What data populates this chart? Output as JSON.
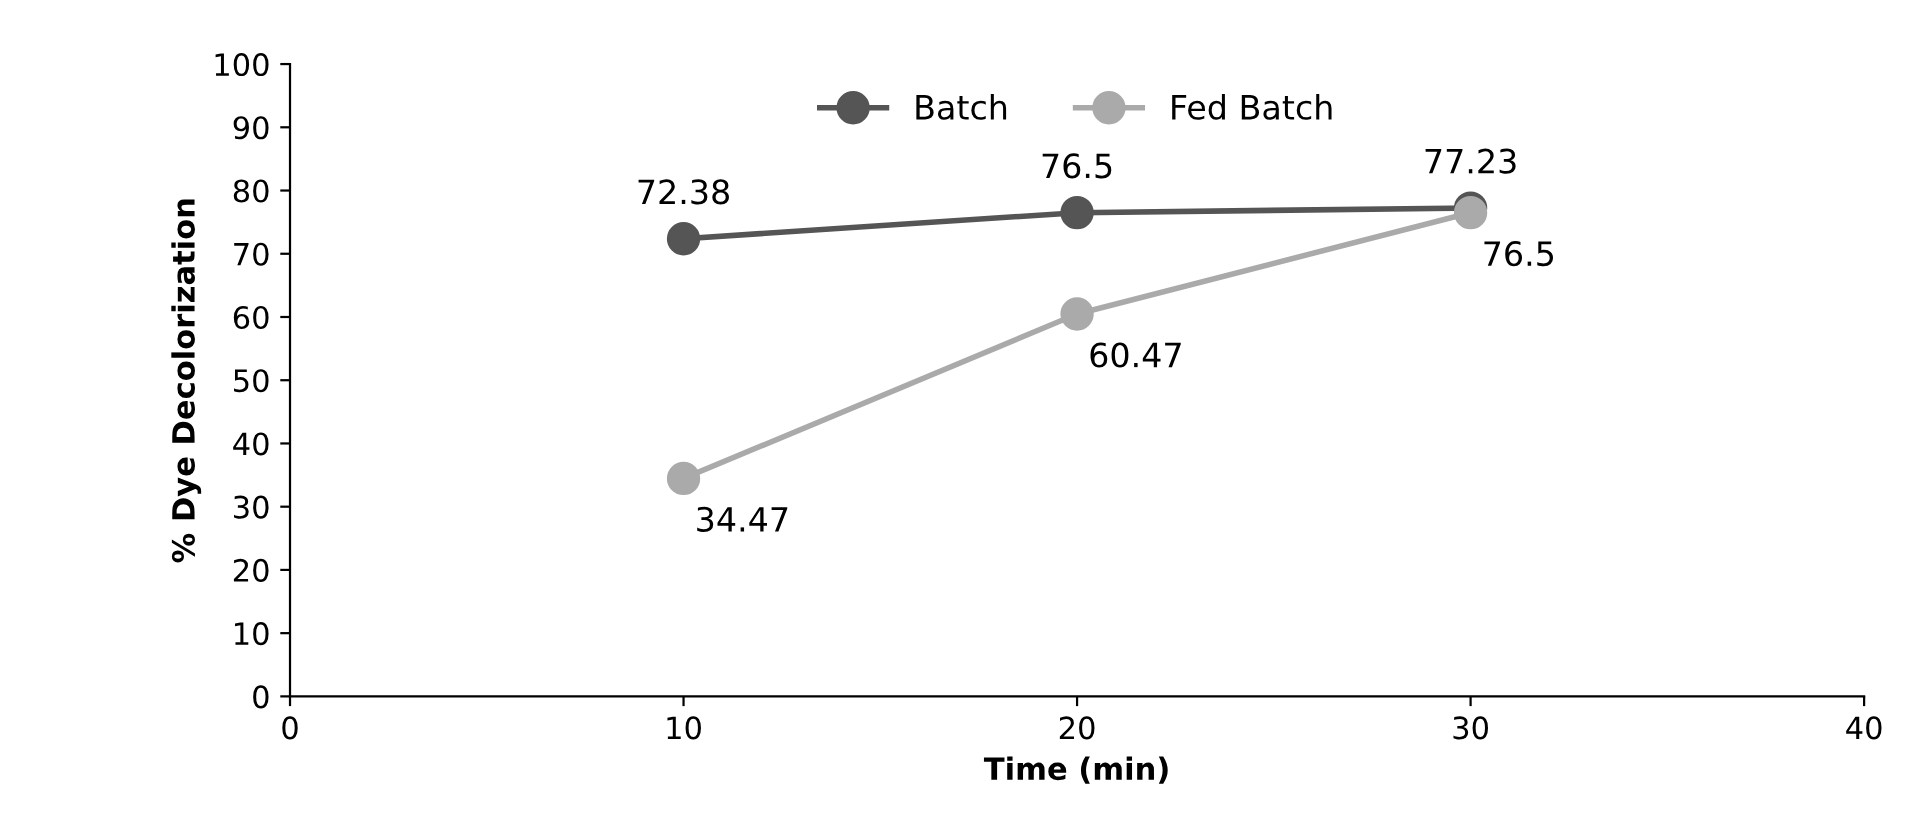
{
  "chart_data": {
    "type": "line",
    "xlabel": "Time (min)",
    "ylabel": "% Dye Decolorization",
    "x": [
      10,
      20,
      30
    ],
    "series": [
      {
        "name": "Batch",
        "color": "#555555",
        "values": [
          72.38,
          76.5,
          77.23
        ]
      },
      {
        "name": "Fed Batch",
        "color": "#aaaaaa",
        "values": [
          34.47,
          60.47,
          76.5
        ]
      }
    ],
    "xlim": [
      0,
      40
    ],
    "xticks": [
      0,
      10,
      20,
      30,
      40
    ],
    "ylim": [
      0,
      100
    ],
    "yticks": [
      0,
      10,
      20,
      30,
      40,
      50,
      60,
      70,
      80,
      90,
      100
    ],
    "marker": "circle",
    "line_style": "solid",
    "grid": false,
    "legend": "top",
    "data_labels": true
  }
}
